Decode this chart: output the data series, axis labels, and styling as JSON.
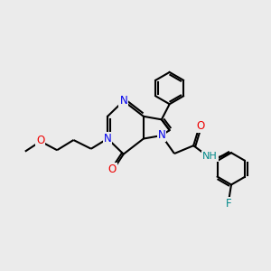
{
  "bg_color": "#ebebeb",
  "atom_colors": {
    "N": "#0000ee",
    "O": "#ee0000",
    "F": "#008888",
    "H": "#008888",
    "C": "#000000"
  },
  "font_size_atoms": 8.5,
  "line_width": 1.5
}
